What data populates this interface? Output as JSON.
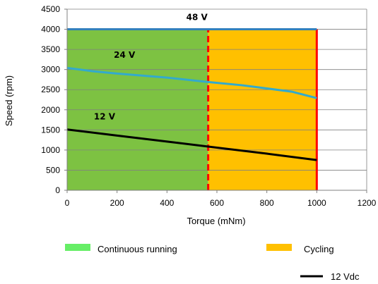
{
  "chart_data": {
    "type": "area",
    "xlabel": "Torque (mNm)",
    "ylabel": "Speed (rpm)",
    "xlim": [
      0,
      1200
    ],
    "ylim": [
      0,
      4500
    ],
    "x_ticks": [
      "0",
      "200",
      "400",
      "600",
      "800",
      "1000",
      "1200"
    ],
    "y_ticks": [
      "0",
      "500",
      "1000",
      "1500",
      "2000",
      "2500",
      "3000",
      "3500",
      "4000",
      "4500"
    ],
    "grid": "horizontal",
    "regions": [
      {
        "name": "Continuous running",
        "x_range": [
          0,
          565
        ],
        "y_range": [
          0,
          4000
        ],
        "color": "#7dc242",
        "legend_color": "#66ee66"
      },
      {
        "name": "Cycling",
        "x_range": [
          565,
          1000
        ],
        "y_range": [
          0,
          4000
        ],
        "color": "#ffc000",
        "legend_color": "#ffc000"
      }
    ],
    "limits": [
      {
        "x": 565,
        "y_range": [
          0,
          4000
        ],
        "color": "#ff0000",
        "style": "dashed"
      },
      {
        "x": 1000,
        "y_range": [
          0,
          4000
        ],
        "color": "#ff0000",
        "style": "solid"
      }
    ],
    "series": [
      {
        "name": "12 Vdc",
        "label": "12 V",
        "color": "#000000",
        "x": [
          0,
          200,
          400,
          600,
          800,
          1000
        ],
        "y": [
          1510,
          1360,
          1210,
          1060,
          910,
          750
        ],
        "label_at": [
          150,
          1760
        ]
      },
      {
        "label": "24 V",
        "color": "#33aacc",
        "x": [
          0,
          100,
          200,
          400,
          565,
          700,
          900,
          1000
        ],
        "y": [
          3040,
          2960,
          2900,
          2800,
          2690,
          2610,
          2450,
          2290
        ],
        "label_at": [
          230,
          3290
        ]
      },
      {
        "label": "48 V",
        "color": "#3380bb",
        "x": [
          0,
          1000
        ],
        "y": [
          4000,
          4000
        ],
        "label_at": [
          520,
          4230
        ]
      }
    ],
    "legend": [
      {
        "label": "Continuous running",
        "color": "#66ee66",
        "kind": "box"
      },
      {
        "label": "Cycling",
        "color": "#ffc000",
        "kind": "box"
      },
      {
        "label": "12 Vdc",
        "color": "#000000",
        "kind": "line"
      }
    ]
  }
}
